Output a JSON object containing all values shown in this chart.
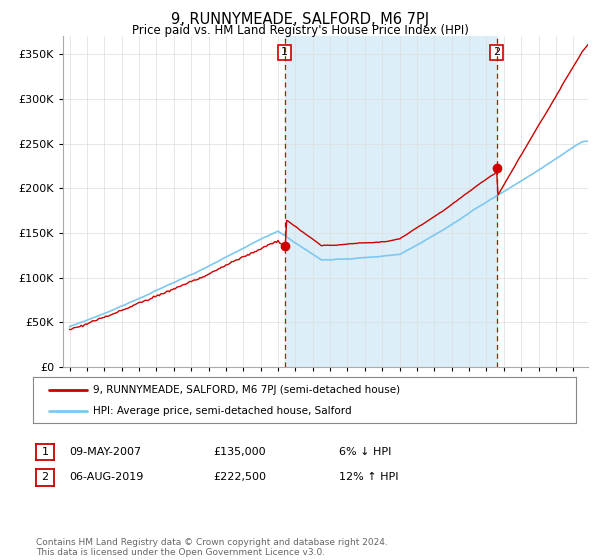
{
  "title": "9, RUNNYMEADE, SALFORD, M6 7PJ",
  "subtitle": "Price paid vs. HM Land Registry's House Price Index (HPI)",
  "ylim": [
    0,
    370000
  ],
  "yticks": [
    0,
    50000,
    100000,
    150000,
    200000,
    250000,
    300000,
    350000
  ],
  "sale1_year": 2007.375,
  "sale1_price": 135000,
  "sale2_year": 2019.583,
  "sale2_price": 222500,
  "hpi_color": "#7ec8f0",
  "price_color": "#cc0000",
  "dashed_color": "#cc0000",
  "shade_color": "#dceef8",
  "legend_label1": "9, RUNNYMEADE, SALFORD, M6 7PJ (semi-detached house)",
  "legend_label2": "HPI: Average price, semi-detached house, Salford",
  "table_row1_date": "09-MAY-2007",
  "table_row1_price": "£135,000",
  "table_row1_hpi": "6% ↓ HPI",
  "table_row2_date": "06-AUG-2019",
  "table_row2_price": "£222,500",
  "table_row2_hpi": "12% ↑ HPI",
  "footer": "Contains HM Land Registry data © Crown copyright and database right 2024.\nThis data is licensed under the Open Government Licence v3.0.",
  "bg_color": "#ffffff",
  "grid_color": "#dddddd",
  "xstart": 1995,
  "xend": 2024
}
